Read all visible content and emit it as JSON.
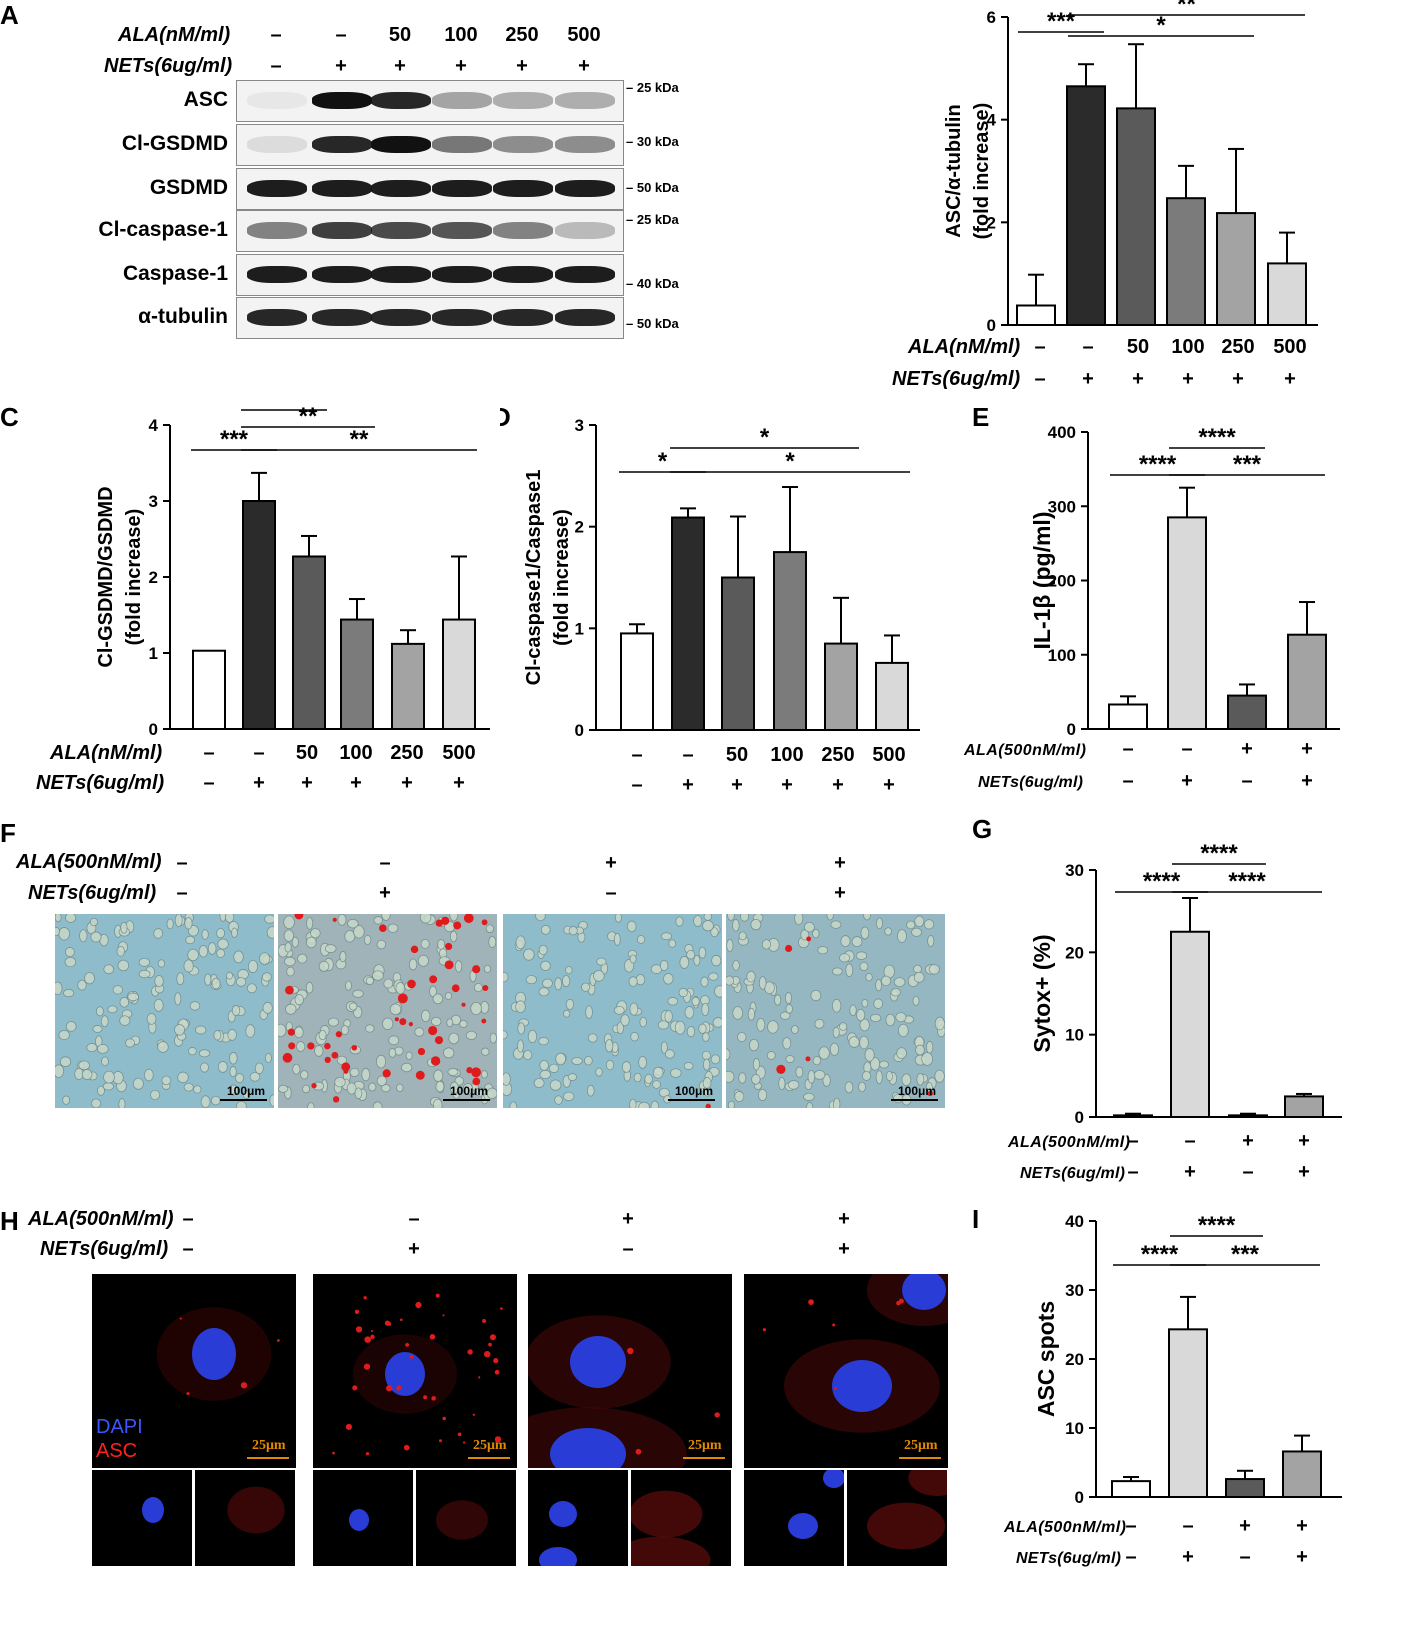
{
  "panels": {
    "A": {
      "letter": "A",
      "ala_label": "ALA(nM/ml)",
      "nets_label": "NETs(6ug/ml)",
      "ala_values": [
        "–",
        "–",
        "50",
        "100",
        "250",
        "500"
      ],
      "nets_values": [
        "–",
        "+",
        "+",
        "+",
        "+",
        "+"
      ],
      "blots": [
        {
          "label": "ASC",
          "kda": "25 kDa",
          "intensity": [
            0.05,
            1.0,
            0.9,
            0.35,
            0.3,
            0.3
          ]
        },
        {
          "label": "Cl-GSDMD",
          "kda": "30 kDa",
          "intensity": [
            0.1,
            0.9,
            1.0,
            0.55,
            0.45,
            0.45
          ]
        },
        {
          "label": "GSDMD",
          "kda": "50 kDa",
          "intensity": [
            0.95,
            0.95,
            0.95,
            0.95,
            0.95,
            0.95
          ]
        },
        {
          "label": "Cl-caspase-1",
          "kda": "25 kDa",
          "intensity": [
            0.5,
            0.8,
            0.75,
            0.7,
            0.5,
            0.25
          ]
        },
        {
          "label": "Caspase-1",
          "kda": "40 kDa",
          "intensity": [
            0.95,
            0.95,
            0.95,
            0.95,
            0.95,
            0.95
          ]
        },
        {
          "label": "α-tubulin",
          "kda": "50 kDa",
          "intensity": [
            0.9,
            0.9,
            0.9,
            0.9,
            0.9,
            0.9
          ]
        }
      ]
    },
    "F": {
      "letter": "F",
      "ala_label": "ALA(500nM/ml)",
      "nets_label": "NETs(6ug/ml)",
      "ala_values": [
        "–",
        "–",
        "+",
        "+"
      ],
      "nets_values": [
        "–",
        "+",
        "–",
        "+"
      ],
      "scale_bar": "100μm"
    },
    "H": {
      "letter": "H",
      "ala_label": "ALA(500nM/ml)",
      "nets_label": "NETs(6ug/ml)",
      "ala_values": [
        "–",
        "–",
        "+",
        "+"
      ],
      "nets_values": [
        "–",
        "+",
        "–",
        "+"
      ],
      "scale_bar": "25μm",
      "legend_dapi": "DAPI",
      "legend_asc": "ASC"
    }
  },
  "colors": {
    "open": "#ffffff",
    "dark": "#2b2b2b",
    "mid1": "#5a5a5a",
    "mid2": "#7b7b7b",
    "light1": "#a3a3a3",
    "light2": "#d9d9d9",
    "brightfield": "#8fb8c6",
    "dapi": "#2a3cd6",
    "asc_red": "#e01b1b"
  },
  "chart_data": [
    {
      "id": "B",
      "letter": "B",
      "type": "bar",
      "categories": [
        "1",
        "2",
        "3",
        "4",
        "5",
        "6"
      ],
      "values": [
        0.38,
        4.65,
        4.22,
        2.47,
        2.18,
        1.2
      ],
      "errors": [
        0.6,
        0.43,
        1.25,
        0.63,
        1.25,
        0.6
      ],
      "fills": [
        "#ffffff",
        "#2b2b2b",
        "#5a5a5a",
        "#7b7b7b",
        "#a3a3a3",
        "#d9d9d9"
      ],
      "ylabel": "ASC/α-tubulin",
      "ylabel2": "(fold increase)",
      "ylim": [
        0,
        6
      ],
      "yticks": [
        0,
        2,
        4,
        6
      ],
      "ala_label": "ALA(nM/ml)",
      "nets_label": "NETs(6ug/ml)",
      "ala_values": [
        "–",
        "–",
        "50",
        "100",
        "250",
        "500"
      ],
      "nets_values": [
        "–",
        "+",
        "+",
        "+",
        "+",
        "+"
      ],
      "sig": [
        {
          "from": 0,
          "to": 1,
          "text": "***",
          "level": 0
        },
        {
          "from": 1,
          "to": 4,
          "text": "*",
          "level": 2
        },
        {
          "from": 1,
          "to": 5,
          "text": "**",
          "level": 1
        }
      ]
    },
    {
      "id": "C",
      "letter": "C",
      "type": "bar",
      "categories": [
        "1",
        "2",
        "3",
        "4",
        "5",
        "6"
      ],
      "values": [
        1.03,
        3.0,
        2.27,
        1.44,
        1.12,
        1.44
      ],
      "errors": [
        0,
        0.37,
        0.27,
        0.27,
        0.18,
        0.83
      ],
      "fills": [
        "#ffffff",
        "#2b2b2b",
        "#5a5a5a",
        "#7b7b7b",
        "#a3a3a3",
        "#d9d9d9"
      ],
      "ylabel": "Cl-GSDMD/GSDMD",
      "ylabel2": "(fold increase)",
      "ylim": [
        0,
        4
      ],
      "yticks": [
        0,
        1,
        2,
        3,
        4
      ],
      "ala_label": "ALA(nM/ml)",
      "nets_label": "NETs(6ug/ml)",
      "ala_values": [
        "–",
        "–",
        "50",
        "100",
        "250",
        "500"
      ],
      "nets_values": [
        "–",
        "+",
        "+",
        "+",
        "+",
        "+"
      ],
      "sig": [
        {
          "from": 0,
          "to": 1,
          "text": "***",
          "level": 0
        },
        {
          "from": 1,
          "to": 2,
          "text": "**",
          "level": 2
        },
        {
          "from": 1,
          "to": 3,
          "text": "**",
          "level": 1
        },
        {
          "from": 1,
          "to": 5,
          "text": "**",
          "level": 0
        }
      ]
    },
    {
      "id": "D",
      "letter": "D",
      "type": "bar",
      "categories": [
        "1",
        "2",
        "3",
        "4",
        "5",
        "6"
      ],
      "values": [
        0.95,
        2.09,
        1.5,
        1.75,
        0.85,
        0.66
      ],
      "errors": [
        0.09,
        0.09,
        0.6,
        0.64,
        0.45,
        0.27
      ],
      "fills": [
        "#ffffff",
        "#2b2b2b",
        "#5a5a5a",
        "#7b7b7b",
        "#a3a3a3",
        "#d9d9d9"
      ],
      "ylabel": "Cl-caspase1/Caspase1",
      "ylabel2": "(fold increase)",
      "ylim": [
        0,
        3
      ],
      "yticks": [
        0,
        1,
        2,
        3
      ],
      "ala_label": "",
      "nets_label": "",
      "ala_values": [
        "–",
        "–",
        "50",
        "100",
        "250",
        "500"
      ],
      "nets_values": [
        "–",
        "+",
        "+",
        "+",
        "+",
        "+"
      ],
      "sig": [
        {
          "from": 0,
          "to": 1,
          "text": "*",
          "level": 0
        },
        {
          "from": 1,
          "to": 4,
          "text": "*",
          "level": 1
        },
        {
          "from": 1,
          "to": 5,
          "text": "*",
          "level": 0
        }
      ]
    },
    {
      "id": "E",
      "letter": "E",
      "type": "bar",
      "categories": [
        "1",
        "2",
        "3",
        "4"
      ],
      "values": [
        33,
        285,
        45,
        127
      ],
      "errors": [
        11,
        40,
        15,
        44
      ],
      "fills": [
        "#ffffff",
        "#d9d9d9",
        "#5a5a5a",
        "#a3a3a3"
      ],
      "ylabel": "IL-1β (pg/ml)",
      "ylabel2": "",
      "ylim": [
        0,
        400
      ],
      "yticks": [
        0,
        100,
        200,
        300,
        400
      ],
      "ala_label": "ALA(500nM/ml)",
      "nets_label": "NETs(6ug/ml)",
      "ala_values": [
        "–",
        "–",
        "+",
        "+"
      ],
      "nets_values": [
        "–",
        "+",
        "–",
        "+"
      ],
      "sig": [
        {
          "from": 0,
          "to": 1,
          "text": "****",
          "level": 0
        },
        {
          "from": 1,
          "to": 2,
          "text": "****",
          "level": 1
        },
        {
          "from": 1,
          "to": 3,
          "text": "***",
          "level": 0
        }
      ]
    },
    {
      "id": "G",
      "letter": "G",
      "type": "bar",
      "categories": [
        "1",
        "2",
        "3",
        "4"
      ],
      "values": [
        0.2,
        22.5,
        0.2,
        2.5
      ],
      "errors": [
        0.2,
        4.1,
        0.2,
        0.3
      ],
      "fills": [
        "#ffffff",
        "#d9d9d9",
        "#5a5a5a",
        "#a3a3a3"
      ],
      "ylabel": "Sytox+ (%)",
      "ylabel2": "",
      "ylim": [
        0,
        30
      ],
      "yticks": [
        0,
        10,
        20,
        30
      ],
      "ala_label": "ALA(500nM/ml)",
      "nets_label": "NETs(6ug/ml)",
      "ala_values": [
        "–",
        "–",
        "+",
        "+"
      ],
      "nets_values": [
        "–",
        "+",
        "–",
        "+"
      ],
      "sig": [
        {
          "from": 0,
          "to": 1,
          "text": "****",
          "level": 0
        },
        {
          "from": 1,
          "to": 2,
          "text": "****",
          "level": 1
        },
        {
          "from": 1,
          "to": 3,
          "text": "****",
          "level": 0
        }
      ]
    },
    {
      "id": "I",
      "letter": "I",
      "type": "bar",
      "categories": [
        "1",
        "2",
        "3",
        "4"
      ],
      "values": [
        2.3,
        24.3,
        2.6,
        6.6
      ],
      "errors": [
        0.6,
        4.7,
        1.2,
        2.3
      ],
      "fills": [
        "#ffffff",
        "#d9d9d9",
        "#5a5a5a",
        "#a3a3a3"
      ],
      "ylabel": "ASC spots",
      "ylabel2": "",
      "ylim": [
        0,
        40
      ],
      "yticks": [
        0,
        10,
        20,
        30,
        40
      ],
      "ala_label": "ALA(500nM/ml)",
      "nets_label": "NETs(6ug/ml)",
      "ala_values": [
        "–",
        "–",
        "+",
        "+"
      ],
      "nets_values": [
        "–",
        "+",
        "–",
        "+"
      ],
      "sig": [
        {
          "from": 0,
          "to": 1,
          "text": "****",
          "level": 0
        },
        {
          "from": 1,
          "to": 2,
          "text": "****",
          "level": 1
        },
        {
          "from": 1,
          "to": 3,
          "text": "***",
          "level": 0
        }
      ]
    }
  ]
}
